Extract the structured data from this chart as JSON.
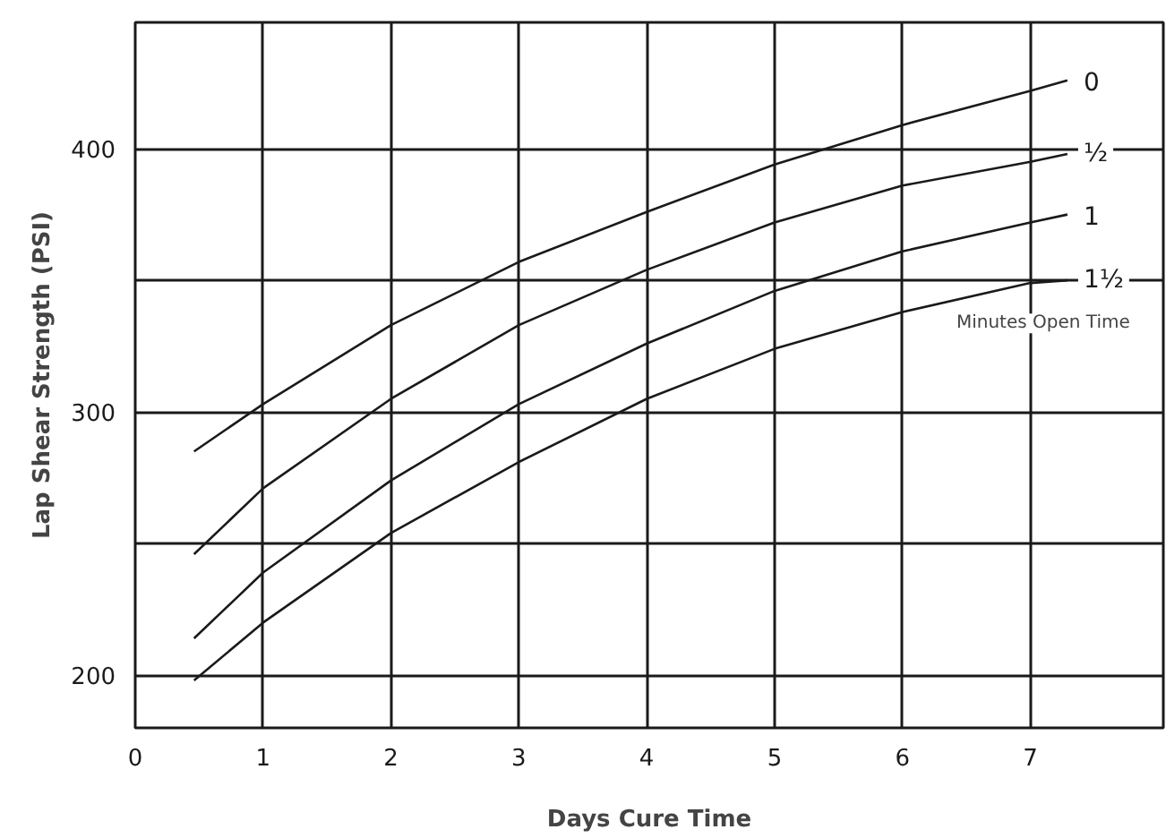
{
  "chart_data": {
    "type": "line",
    "xlabel": "Days Cure Time",
    "ylabel": "Lap Shear Strength (PSI)",
    "xlim": [
      0,
      8.04
    ],
    "ylim": [
      180,
      448
    ],
    "xticks": [
      0,
      1,
      2,
      3,
      4,
      5,
      6,
      7
    ],
    "yticks": [
      200,
      {
        "value": 250,
        "label": null
      },
      300,
      {
        "value": 350,
        "label": null
      },
      400
    ],
    "grid": true,
    "marker": "none",
    "line_style": "solid",
    "x": [
      0.46,
      1,
      2,
      3,
      4,
      5,
      6,
      7,
      7.29
    ],
    "series": [
      {
        "name": "0",
        "color": "#1a1a1a",
        "values": [
          285,
          303,
          333,
          357,
          376,
          394,
          409,
          422,
          426
        ]
      },
      {
        "name": "½",
        "color": "#1a1a1a",
        "values": [
          246,
          271,
          305,
          333,
          354,
          372,
          386,
          395,
          398
        ]
      },
      {
        "name": "1",
        "color": "#1a1a1a",
        "values": [
          214,
          239,
          274,
          303,
          326,
          346,
          361,
          372,
          375
        ]
      },
      {
        "name": "1½",
        "color": "#1a1a1a",
        "values": [
          198,
          220,
          254,
          281,
          305,
          324,
          338,
          349,
          350
        ]
      }
    ],
    "annotations": [
      "Minutes Open Time"
    ]
  }
}
